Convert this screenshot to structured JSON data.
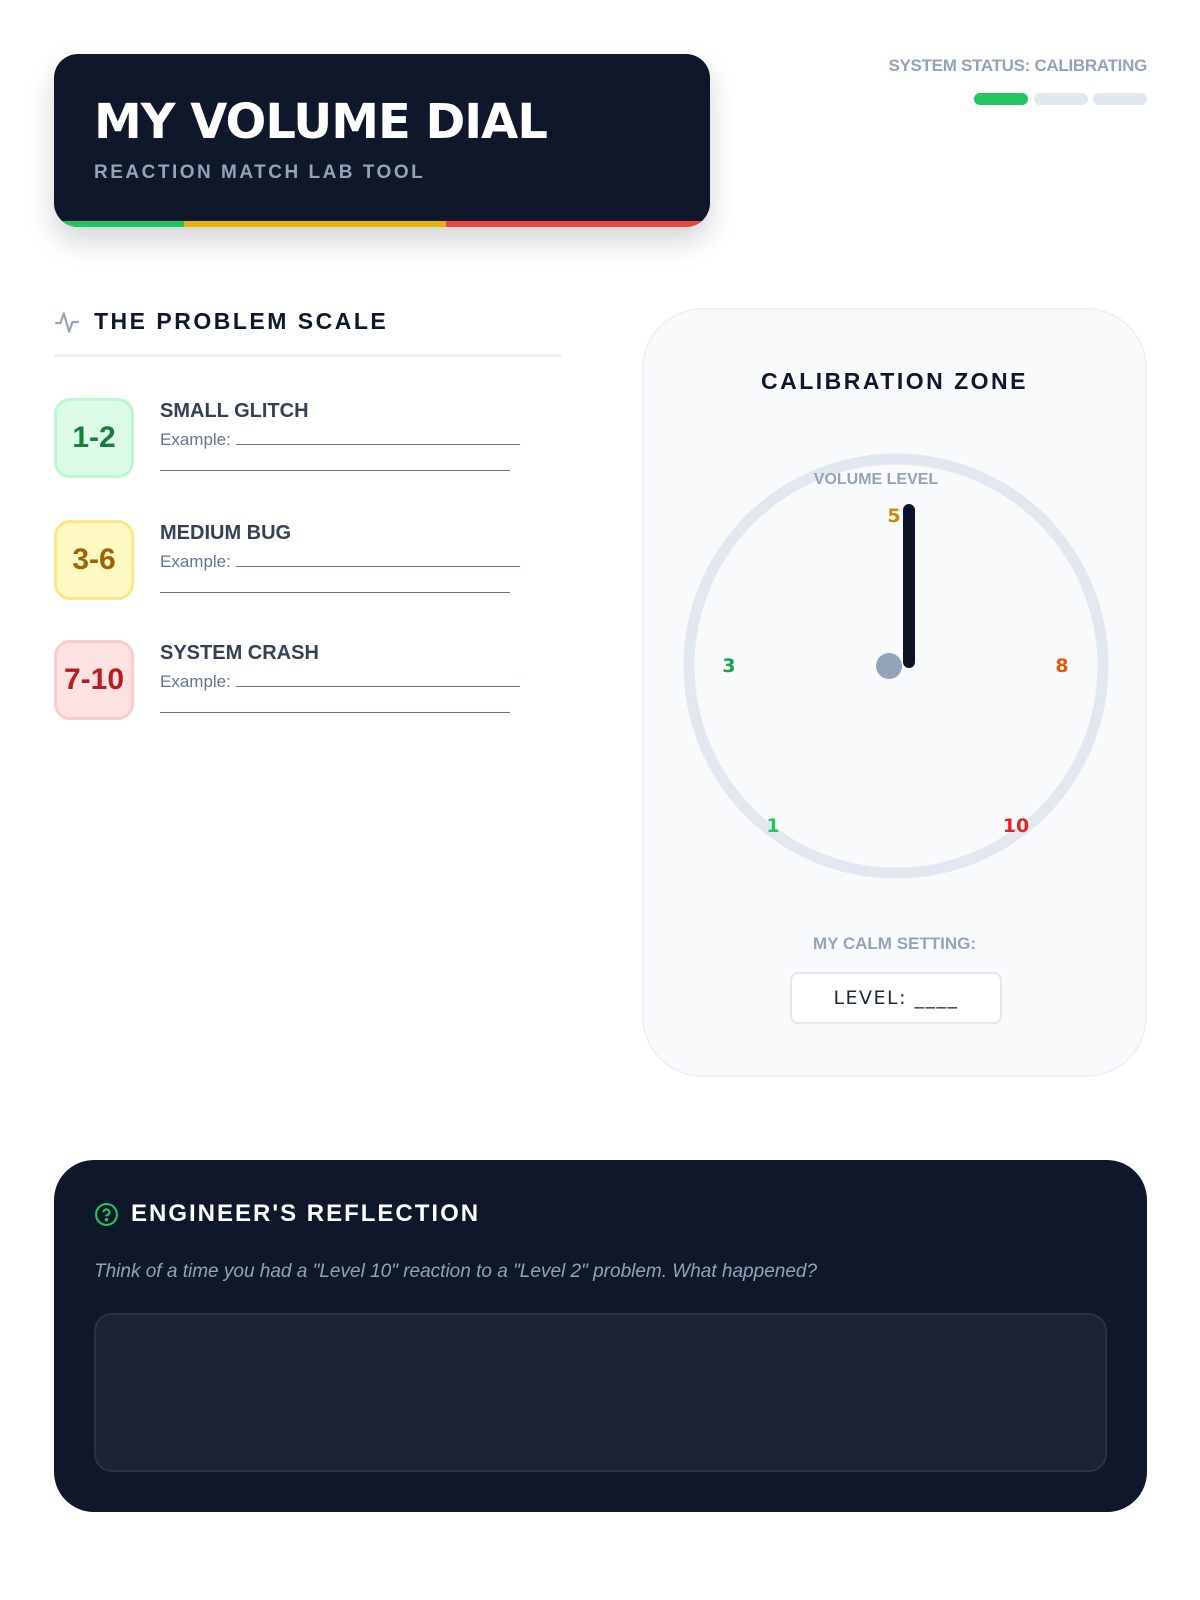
{
  "header": {
    "title": "MY VOLUME DIAL",
    "subtitle": "REACTION MATCH LAB TOOL",
    "stripe_colors": [
      "#22c55e",
      "#eab308",
      "#ef4444"
    ]
  },
  "status": {
    "label": "SYSTEM STATUS: CALIBRATING",
    "steps_active": 1,
    "steps_total": 3,
    "active_color": "#22c55e",
    "inactive_color": "#e2e8f0"
  },
  "scale": {
    "heading": "THE PROBLEM SCALE",
    "icon": "activity-pulse-icon",
    "items": [
      {
        "range": "1-2",
        "title": "SMALL GLITCH",
        "example_label": "Example:",
        "bg": "#dcfce7",
        "border": "#bbf7d0",
        "color": "#15803d"
      },
      {
        "range": "3-6",
        "title": "MEDIUM BUG",
        "example_label": "Example:",
        "bg": "#fef9c3",
        "border": "#fde68a",
        "color": "#a16207"
      },
      {
        "range": "7-10",
        "title": "SYSTEM CRASH",
        "example_label": "Example:",
        "bg": "#fee2e2",
        "border": "#fecaca",
        "color": "#b91c1c"
      }
    ]
  },
  "calibration": {
    "title": "CALIBRATION ZONE",
    "dial_label": "VOLUME LEVEL",
    "needle_value": 5,
    "ticks": [
      {
        "label": "1",
        "color": "#22c55e"
      },
      {
        "label": "3",
        "color": "#16a34a"
      },
      {
        "label": "5",
        "color": "#ca8a04"
      },
      {
        "label": "8",
        "color": "#ea580c"
      },
      {
        "label": "10",
        "color": "#dc2626"
      }
    ],
    "calm_label": "MY CALM SETTING:",
    "level_text": "LEVEL: ____"
  },
  "reflection": {
    "title": "ENGINEER'S REFLECTION",
    "icon": "question-circle-icon",
    "prompt": "Think of a time you had a \"Level 10\" reaction to a \"Level 2\" problem. What happened?",
    "answer": ""
  }
}
